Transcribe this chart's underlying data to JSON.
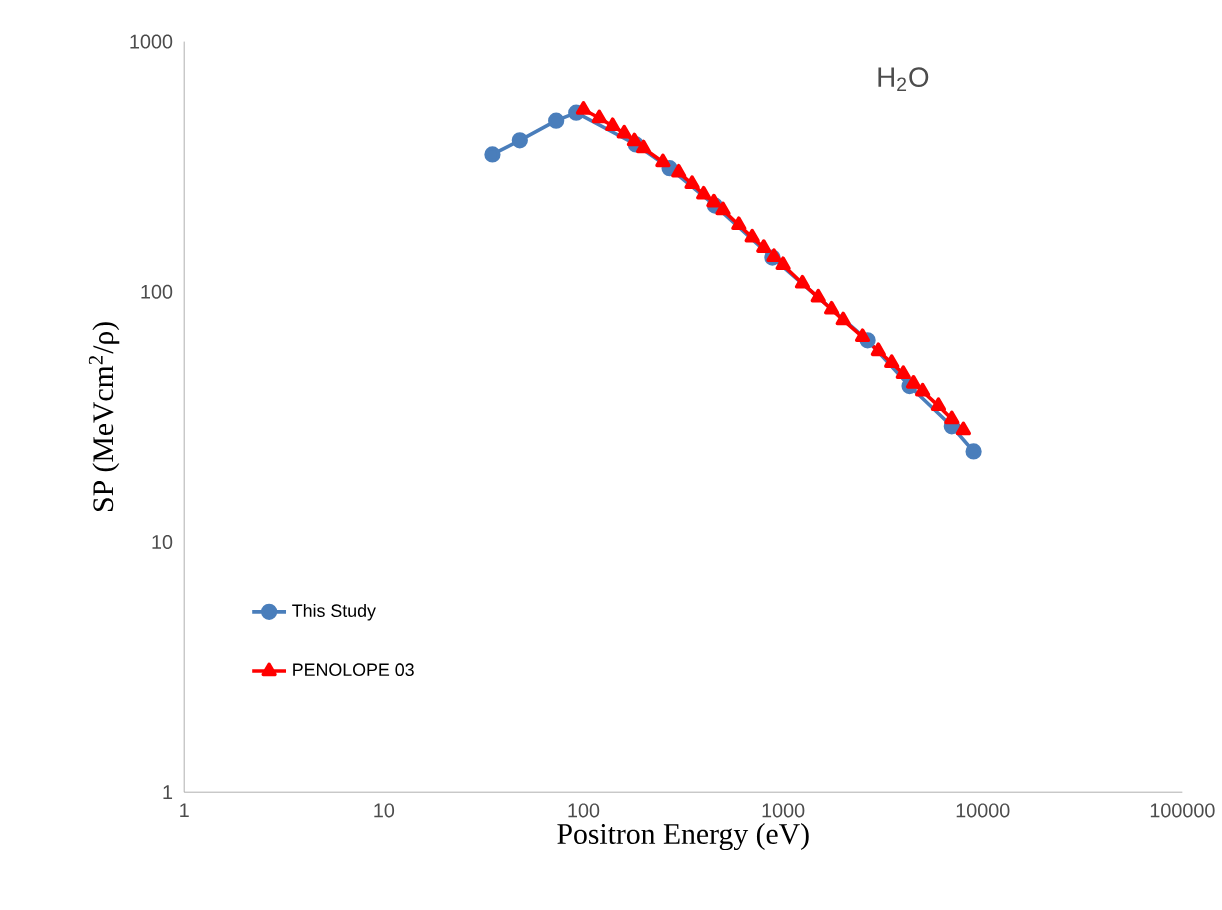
{
  "chart_data": {
    "type": "line",
    "xlabel": "Positron Energy (eV)",
    "ylabel": "SP (MeVcm$^{2}$/ρ)",
    "annotations": [
      "H$_{2}$O"
    ],
    "log": "xy",
    "xlim": [
      1,
      100000
    ],
    "ylim": [
      1,
      1000
    ],
    "xticks": [
      1,
      10,
      100,
      1000,
      10000,
      100000
    ],
    "yticks": [
      1,
      10,
      100,
      1000
    ],
    "grid": false,
    "legend": "bottom left",
    "series": [
      {
        "name": "This Study",
        "color": "#4a7ebb",
        "marker": "circle",
        "x": [
          35,
          48,
          73,
          92,
          183,
          270,
          456,
          884,
          2650,
          4300,
          7000,
          9000
        ],
        "values": [
          354,
          403,
          483,
          520,
          388,
          312,
          221,
          137,
          64,
          42,
          29,
          23
        ]
      },
      {
        "name": "PENOLOPE 03",
        "color": "#ff0000",
        "marker": "triangle",
        "x": [
          100,
          120,
          140,
          160,
          180,
          200,
          250,
          300,
          350,
          400,
          450,
          500,
          600,
          700,
          800,
          900,
          1000,
          1250,
          1500,
          1750,
          2000,
          2500,
          3000,
          3500,
          4000,
          4500,
          5000,
          6000,
          7000,
          8000
        ],
        "values": [
          535,
          495,
          460,
          430,
          400,
          375,
          330,
          300,
          270,
          245,
          228,
          212,
          185,
          165,
          150,
          138,
          128,
          108,
          95,
          85,
          77,
          66,
          58,
          52,
          47,
          43,
          40,
          35,
          31,
          28
        ]
      }
    ]
  }
}
